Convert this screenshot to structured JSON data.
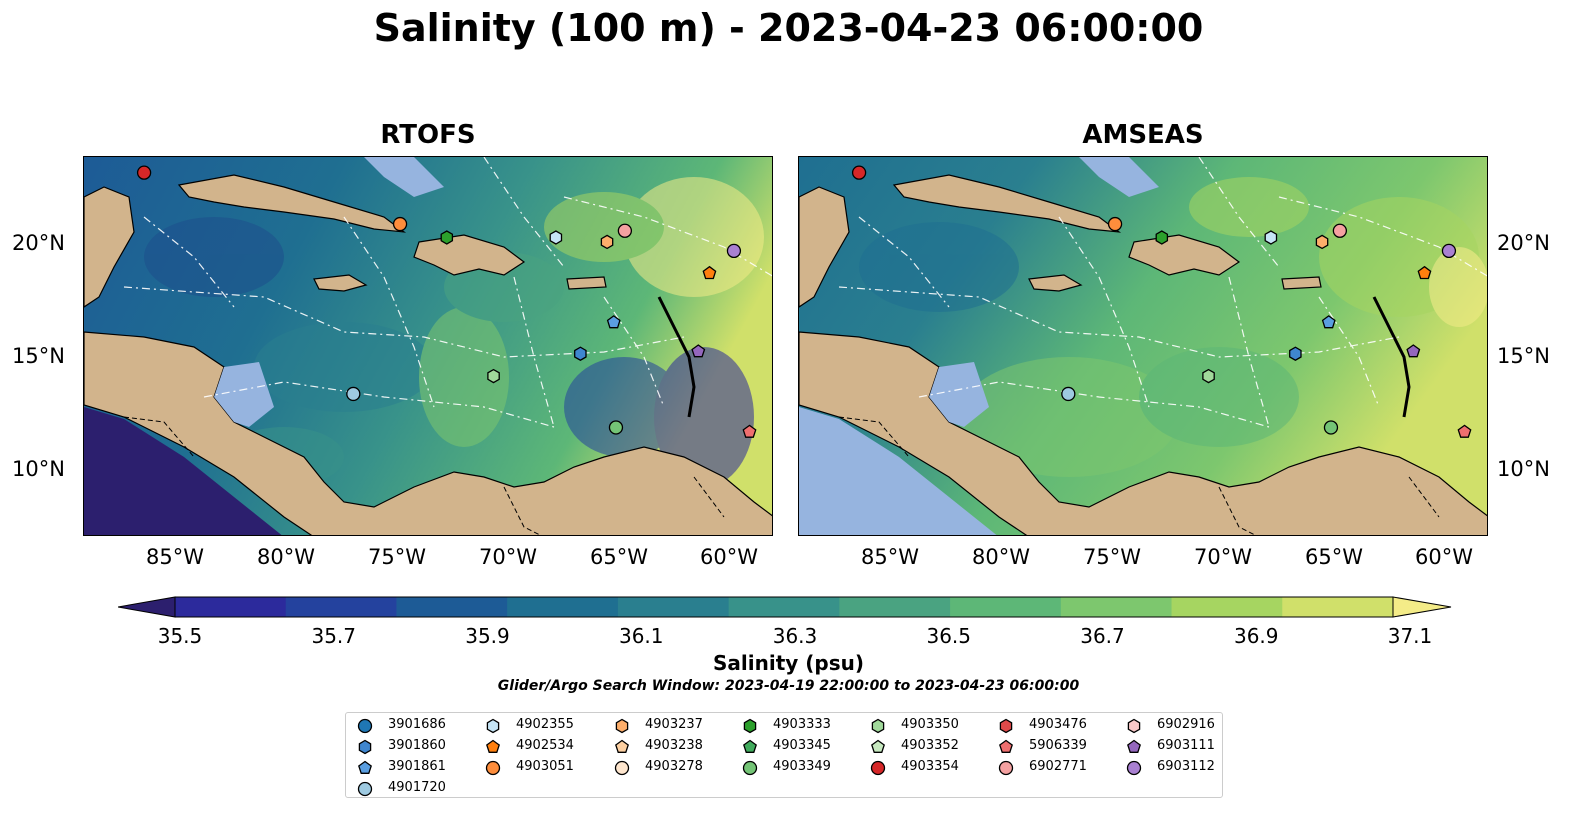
{
  "title": "Salinity (100 m) - 2023-04-23 06:00:00",
  "panels": [
    {
      "title": "RTOFS"
    },
    {
      "title": "AMSEAS"
    }
  ],
  "axes": {
    "x_ticks": [
      "85°W",
      "80°W",
      "75°W",
      "70°W",
      "65°W",
      "60°W"
    ],
    "y_ticks": [
      "20°N",
      "15°N",
      "10°N"
    ]
  },
  "colorbar": {
    "label": "Salinity (psu)",
    "ticks": [
      "35.5",
      "35.7",
      "35.9",
      "36.1",
      "36.3",
      "36.5",
      "36.7",
      "36.9",
      "37.1"
    ],
    "colors": [
      "#2c1f6e",
      "#2c2a9c",
      "#24429e",
      "#1d5b96",
      "#1f6f91",
      "#2a7f8f",
      "#38928a",
      "#4aa381",
      "#5db777",
      "#7dc76e",
      "#a6d561",
      "#d0e06a",
      "#f4ec88"
    ],
    "extend": "both"
  },
  "search_window": "Glider/Argo Search Window: 2023-04-19 22:00:00 to 2023-04-23 06:00:00",
  "legend": [
    {
      "id": "3901686",
      "color": "#1f77b4",
      "marker": "circle"
    },
    {
      "id": "3901860",
      "color": "#3f86cf",
      "marker": "hexagon"
    },
    {
      "id": "3901861",
      "color": "#5a9ee0",
      "marker": "pentagon"
    },
    {
      "id": "4901720",
      "color": "#9ecae1",
      "marker": "circle"
    },
    {
      "id": "4902355",
      "color": "#c6e5f6",
      "marker": "hexagon"
    },
    {
      "id": "4902534",
      "color": "#ff7f0e",
      "marker": "pentagon"
    },
    {
      "id": "4903051",
      "color": "#fd8d3c",
      "marker": "circle"
    },
    {
      "id": "4903237",
      "color": "#fdae6b",
      "marker": "hexagon"
    },
    {
      "id": "4903238",
      "color": "#fdd0a2",
      "marker": "pentagon"
    },
    {
      "id": "4903278",
      "color": "#fee6ce",
      "marker": "circle"
    },
    {
      "id": "4903333",
      "color": "#2ca02c",
      "marker": "hexagon"
    },
    {
      "id": "4903345",
      "color": "#41ab5d",
      "marker": "pentagon"
    },
    {
      "id": "4903349",
      "color": "#74c476",
      "marker": "circle"
    },
    {
      "id": "4903350",
      "color": "#a1d99b",
      "marker": "hexagon"
    },
    {
      "id": "4903352",
      "color": "#c7e9c0",
      "marker": "pentagon"
    },
    {
      "id": "4903354",
      "color": "#d62728",
      "marker": "circle"
    },
    {
      "id": "4903476",
      "color": "#de4a4a",
      "marker": "hexagon"
    },
    {
      "id": "5906339",
      "color": "#ef6f6f",
      "marker": "pentagon"
    },
    {
      "id": "6902771",
      "color": "#f4a1a1",
      "marker": "circle"
    },
    {
      "id": "6902916",
      "color": "#f9c9c9",
      "marker": "hexagon"
    },
    {
      "id": "6903111",
      "color": "#9467bd",
      "marker": "pentagon"
    },
    {
      "id": "6903112",
      "color": "#a980d1",
      "marker": "circle"
    }
  ],
  "floats_on_map": [
    {
      "id": "4903354",
      "lon": -86.3,
      "lat": 23.3
    },
    {
      "id": "4903051",
      "lon": -74.8,
      "lat": 21.0
    },
    {
      "id": "4903333",
      "lon": -72.7,
      "lat": 20.4
    },
    {
      "id": "4902355",
      "lon": -67.8,
      "lat": 20.4
    },
    {
      "id": "4903237",
      "lon": -65.5,
      "lat": 20.2
    },
    {
      "id": "6902771",
      "lon": -64.7,
      "lat": 20.7
    },
    {
      "id": "6903112",
      "lon": -59.8,
      "lat": 19.8
    },
    {
      "id": "4902534",
      "lon": -60.9,
      "lat": 18.8
    },
    {
      "id": "3901861",
      "lon": -65.2,
      "lat": 16.6
    },
    {
      "id": "3901860",
      "lon": -66.7,
      "lat": 15.2
    },
    {
      "id": "6903111",
      "lon": -61.4,
      "lat": 15.3
    },
    {
      "id": "4903350",
      "lon": -70.6,
      "lat": 14.2
    },
    {
      "id": "4901720",
      "lon": -76.9,
      "lat": 13.4
    },
    {
      "id": "4903349",
      "lon": -65.1,
      "lat": 11.9
    },
    {
      "id": "5906339",
      "lon": -59.1,
      "lat": 11.7
    }
  ]
}
